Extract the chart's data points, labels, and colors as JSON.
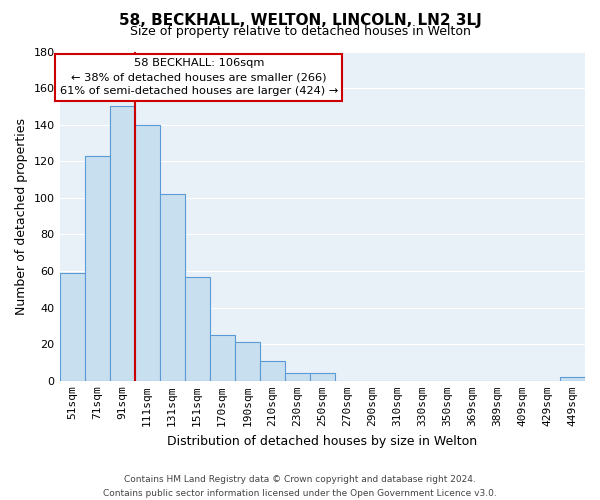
{
  "title": "58, BECKHALL, WELTON, LINCOLN, LN2 3LJ",
  "subtitle": "Size of property relative to detached houses in Welton",
  "xlabel": "Distribution of detached houses by size in Welton",
  "ylabel": "Number of detached properties",
  "categories": [
    "51sqm",
    "71sqm",
    "91sqm",
    "111sqm",
    "131sqm",
    "151sqm",
    "170sqm",
    "190sqm",
    "210sqm",
    "230sqm",
    "250sqm",
    "270sqm",
    "290sqm",
    "310sqm",
    "330sqm",
    "350sqm",
    "369sqm",
    "389sqm",
    "409sqm",
    "429sqm",
    "449sqm"
  ],
  "values": [
    59,
    123,
    150,
    140,
    102,
    57,
    25,
    21,
    11,
    4,
    4,
    0,
    0,
    0,
    0,
    0,
    0,
    0,
    0,
    0,
    2
  ],
  "bar_color": "#c8dff0",
  "bar_edge_color": "#5b9bd5",
  "redline_index": 2,
  "redline_color": "#cc0000",
  "annotation_title": "58 BECKHALL: 106sqm",
  "annotation_line1": "← 38% of detached houses are smaller (266)",
  "annotation_line2": "61% of semi-detached houses are larger (424) →",
  "annotation_box_color": "#ffffff",
  "annotation_box_edge": "#cc0000",
  "ylim": [
    0,
    180
  ],
  "yticks": [
    0,
    20,
    40,
    60,
    80,
    100,
    120,
    140,
    160,
    180
  ],
  "footer_line1": "Contains HM Land Registry data © Crown copyright and database right 2024.",
  "footer_line2": "Contains public sector information licensed under the Open Government Licence v3.0.",
  "background_color": "#ffffff",
  "plot_bg_color": "#e8f0f8",
  "grid_color": "#ffffff",
  "title_fontsize": 11,
  "subtitle_fontsize": 9,
  "ylabel_fontsize": 9,
  "xlabel_fontsize": 9,
  "tick_fontsize": 8,
  "footer_fontsize": 6.5
}
